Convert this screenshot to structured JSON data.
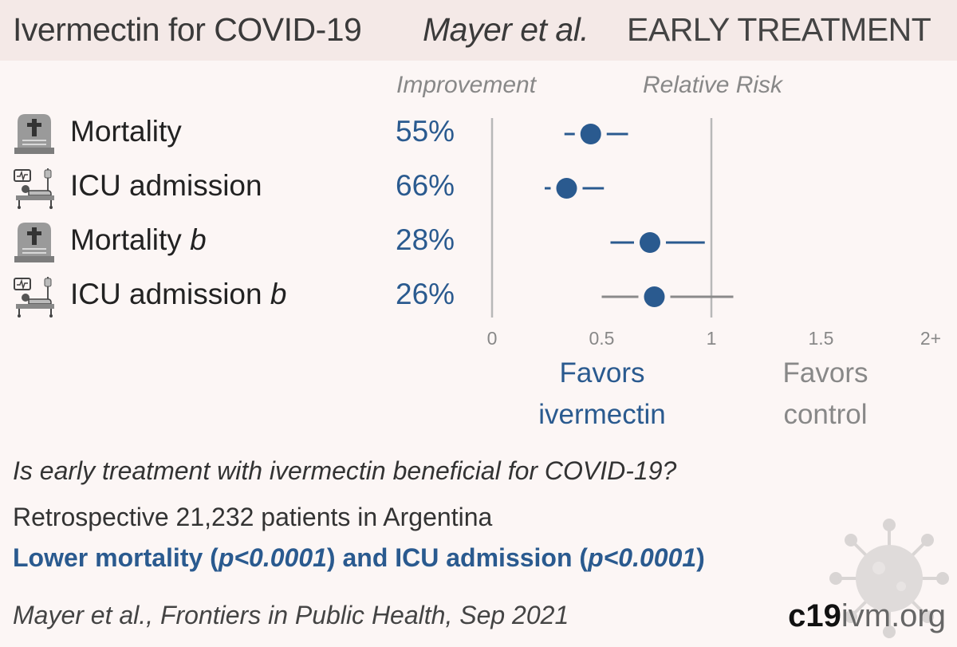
{
  "header": {
    "title": "Ivermectin for COVID-19",
    "author": "Mayer et al.",
    "tag": "EARLY TREATMENT"
  },
  "columns": {
    "improvement": "Improvement",
    "relative_risk": "Relative Risk"
  },
  "rows": [
    {
      "icon": "tombstone-icon",
      "label": "Mortality",
      "suffix": "",
      "improvement": "55%"
    },
    {
      "icon": "hospital-bed-icon",
      "label": "ICU admission",
      "suffix": "",
      "improvement": "66%"
    },
    {
      "icon": "tombstone-icon",
      "label": "Mortality",
      "suffix": "b",
      "improvement": "28%"
    },
    {
      "icon": "hospital-bed-icon",
      "label": "ICU admission",
      "suffix": "b",
      "improvement": "26%"
    }
  ],
  "favors": {
    "treatment_line1": "Favors",
    "treatment_line2": "ivermectin",
    "control_line1": "Favors",
    "control_line2": "control"
  },
  "footer": {
    "question": "Is early treatment with ivermectin beneficial for COVID-19?",
    "design": "Retrospective 21,232 patients in Argentina",
    "conclusion_a": "Lower mortality (",
    "conclusion_b": "p<0.0001",
    "conclusion_c": ") and ICU admission (",
    "conclusion_d": "p<0.0001",
    "conclusion_e": ")",
    "citation": "Mayer et al., Frontiers in Public Health, Sep 2021"
  },
  "brand": {
    "bold": "c19",
    "rest": "ivm.org"
  },
  "colors": {
    "accent": "#2a5a8f",
    "muted": "#888888",
    "axis": "#b8b8b8",
    "background": "#fcf6f5",
    "header_bg": "#f4e9e7"
  },
  "chart_data": {
    "type": "scatter",
    "title": "Relative Risk",
    "categories": [
      "Mortality",
      "ICU admission",
      "Mortality b",
      "ICU admission b"
    ],
    "series": [
      {
        "values": [
          0.45,
          0.34,
          0.72,
          0.74
        ],
        "ci_low": [
          0.33,
          0.24,
          0.54,
          0.5
        ],
        "ci_high": [
          0.62,
          0.51,
          0.97,
          1.1
        ]
      }
    ],
    "xlim": [
      0,
      2
    ],
    "xticks": [
      "0",
      "0.5",
      "1",
      "1.5",
      "2+"
    ],
    "reference_line": 1,
    "grid": false
  }
}
